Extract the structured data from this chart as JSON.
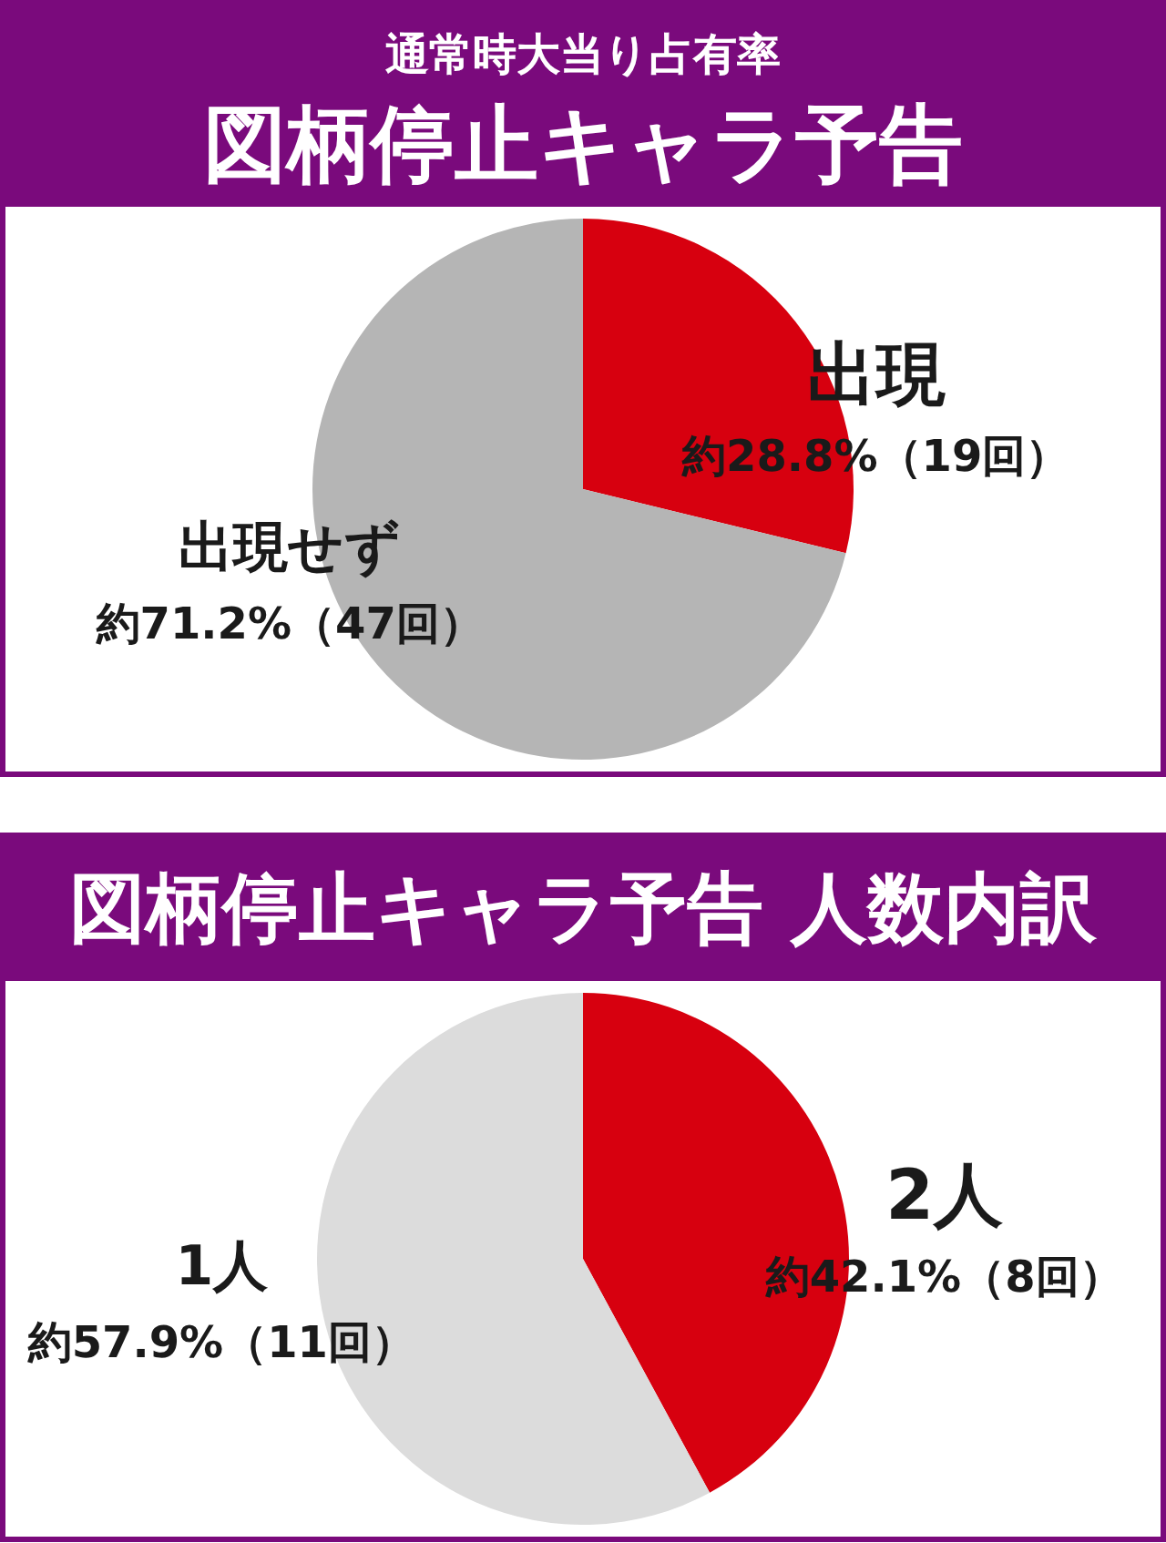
{
  "chart_data": [
    {
      "type": "pie",
      "title": "通常時大当り占有率",
      "subtitle": "図柄停止キャラ予告",
      "categories": [
        "出現",
        "出現せず"
      ],
      "values": [
        28.8,
        71.2
      ],
      "colors": [
        "#d7000f",
        "#b5b5b5"
      ],
      "value_labels": [
        "約28.8%（19回）",
        "約71.2%（47回）"
      ]
    },
    {
      "type": "pie",
      "title": "図柄停止キャラ予告 人数内訳",
      "categories": [
        "2人",
        "1人"
      ],
      "values": [
        42.1,
        57.9
      ],
      "colors": [
        "#d7000f",
        "#dcdcdc"
      ],
      "value_labels": [
        "約42.1%（8回）",
        "約57.9%（11回）"
      ]
    }
  ]
}
